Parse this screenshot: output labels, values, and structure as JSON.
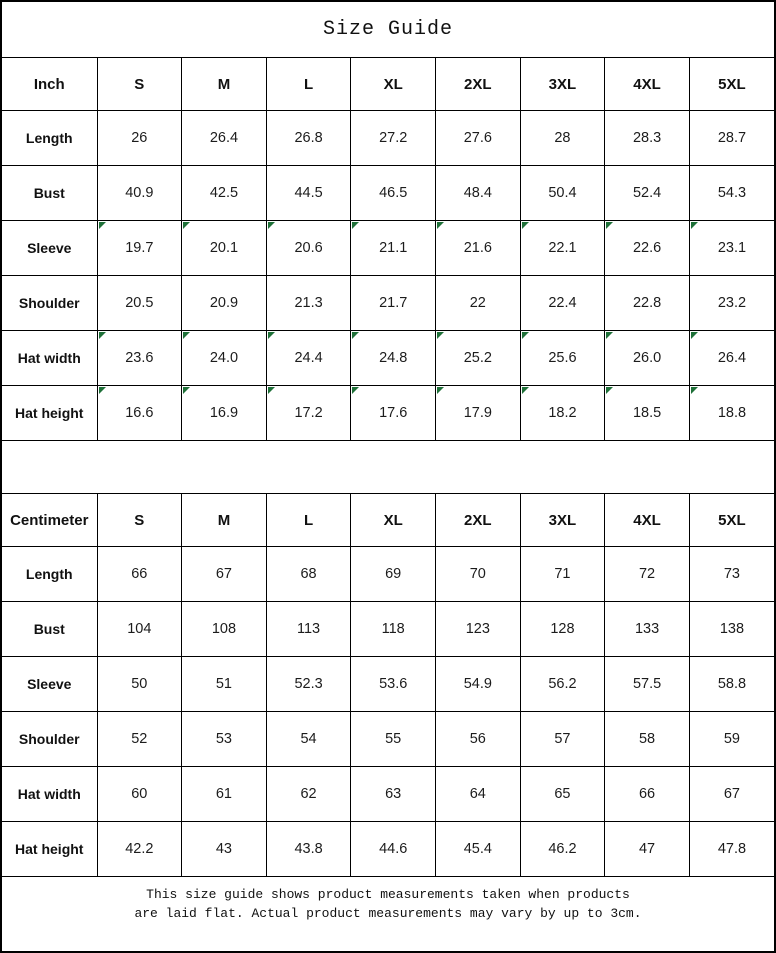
{
  "title": "Size Guide",
  "colors": {
    "border": "#000000",
    "background": "#ffffff",
    "flag_triangle_green": "#1e7038"
  },
  "tables": [
    {
      "unit_label": "Inch",
      "columns": [
        "S",
        "M",
        "L",
        "XL",
        "2XL",
        "3XL",
        "4XL",
        "5XL"
      ],
      "rows": [
        {
          "label": "Length",
          "flagged": false,
          "values": [
            "26",
            "26.4",
            "26.8",
            "27.2",
            "27.6",
            "28",
            "28.3",
            "28.7"
          ]
        },
        {
          "label": "Bust",
          "flagged": false,
          "values": [
            "40.9",
            "42.5",
            "44.5",
            "46.5",
            "48.4",
            "50.4",
            "52.4",
            "54.3"
          ]
        },
        {
          "label": "Sleeve",
          "flagged": true,
          "values": [
            "19.7",
            "20.1",
            "20.6",
            "21.1",
            "21.6",
            "22.1",
            "22.6",
            "23.1"
          ]
        },
        {
          "label": "Shoulder",
          "flagged": false,
          "values": [
            "20.5",
            "20.9",
            "21.3",
            "21.7",
            "22",
            "22.4",
            "22.8",
            "23.2"
          ]
        },
        {
          "label": "Hat width",
          "flagged": true,
          "values": [
            "23.6",
            "24.0",
            "24.4",
            "24.8",
            "25.2",
            "25.6",
            "26.0",
            "26.4"
          ]
        },
        {
          "label": "Hat height",
          "flagged": true,
          "values": [
            "16.6",
            "16.9",
            "17.2",
            "17.6",
            "17.9",
            "18.2",
            "18.5",
            "18.8"
          ]
        }
      ]
    },
    {
      "unit_label": "Centimeter",
      "columns": [
        "S",
        "M",
        "L",
        "XL",
        "2XL",
        "3XL",
        "4XL",
        "5XL"
      ],
      "rows": [
        {
          "label": "Length",
          "flagged": false,
          "values": [
            "66",
            "67",
            "68",
            "69",
            "70",
            "71",
            "72",
            "73"
          ]
        },
        {
          "label": "Bust",
          "flagged": false,
          "values": [
            "104",
            "108",
            "113",
            "118",
            "123",
            "128",
            "133",
            "138"
          ]
        },
        {
          "label": "Sleeve",
          "flagged": false,
          "values": [
            "50",
            "51",
            "52.3",
            "53.6",
            "54.9",
            "56.2",
            "57.5",
            "58.8"
          ]
        },
        {
          "label": "Shoulder",
          "flagged": false,
          "values": [
            "52",
            "53",
            "54",
            "55",
            "56",
            "57",
            "58",
            "59"
          ]
        },
        {
          "label": "Hat width",
          "flagged": false,
          "values": [
            "60",
            "61",
            "62",
            "63",
            "64",
            "65",
            "66",
            "67"
          ]
        },
        {
          "label": "Hat height",
          "flagged": false,
          "values": [
            "42.2",
            "43",
            "43.8",
            "44.6",
            "45.4",
            "46.2",
            "47",
            "47.8"
          ]
        }
      ]
    }
  ],
  "footer": {
    "line1": "This size guide shows product measurements taken when products",
    "line2": "are laid flat. Actual product measurements may vary by up to 3cm."
  }
}
